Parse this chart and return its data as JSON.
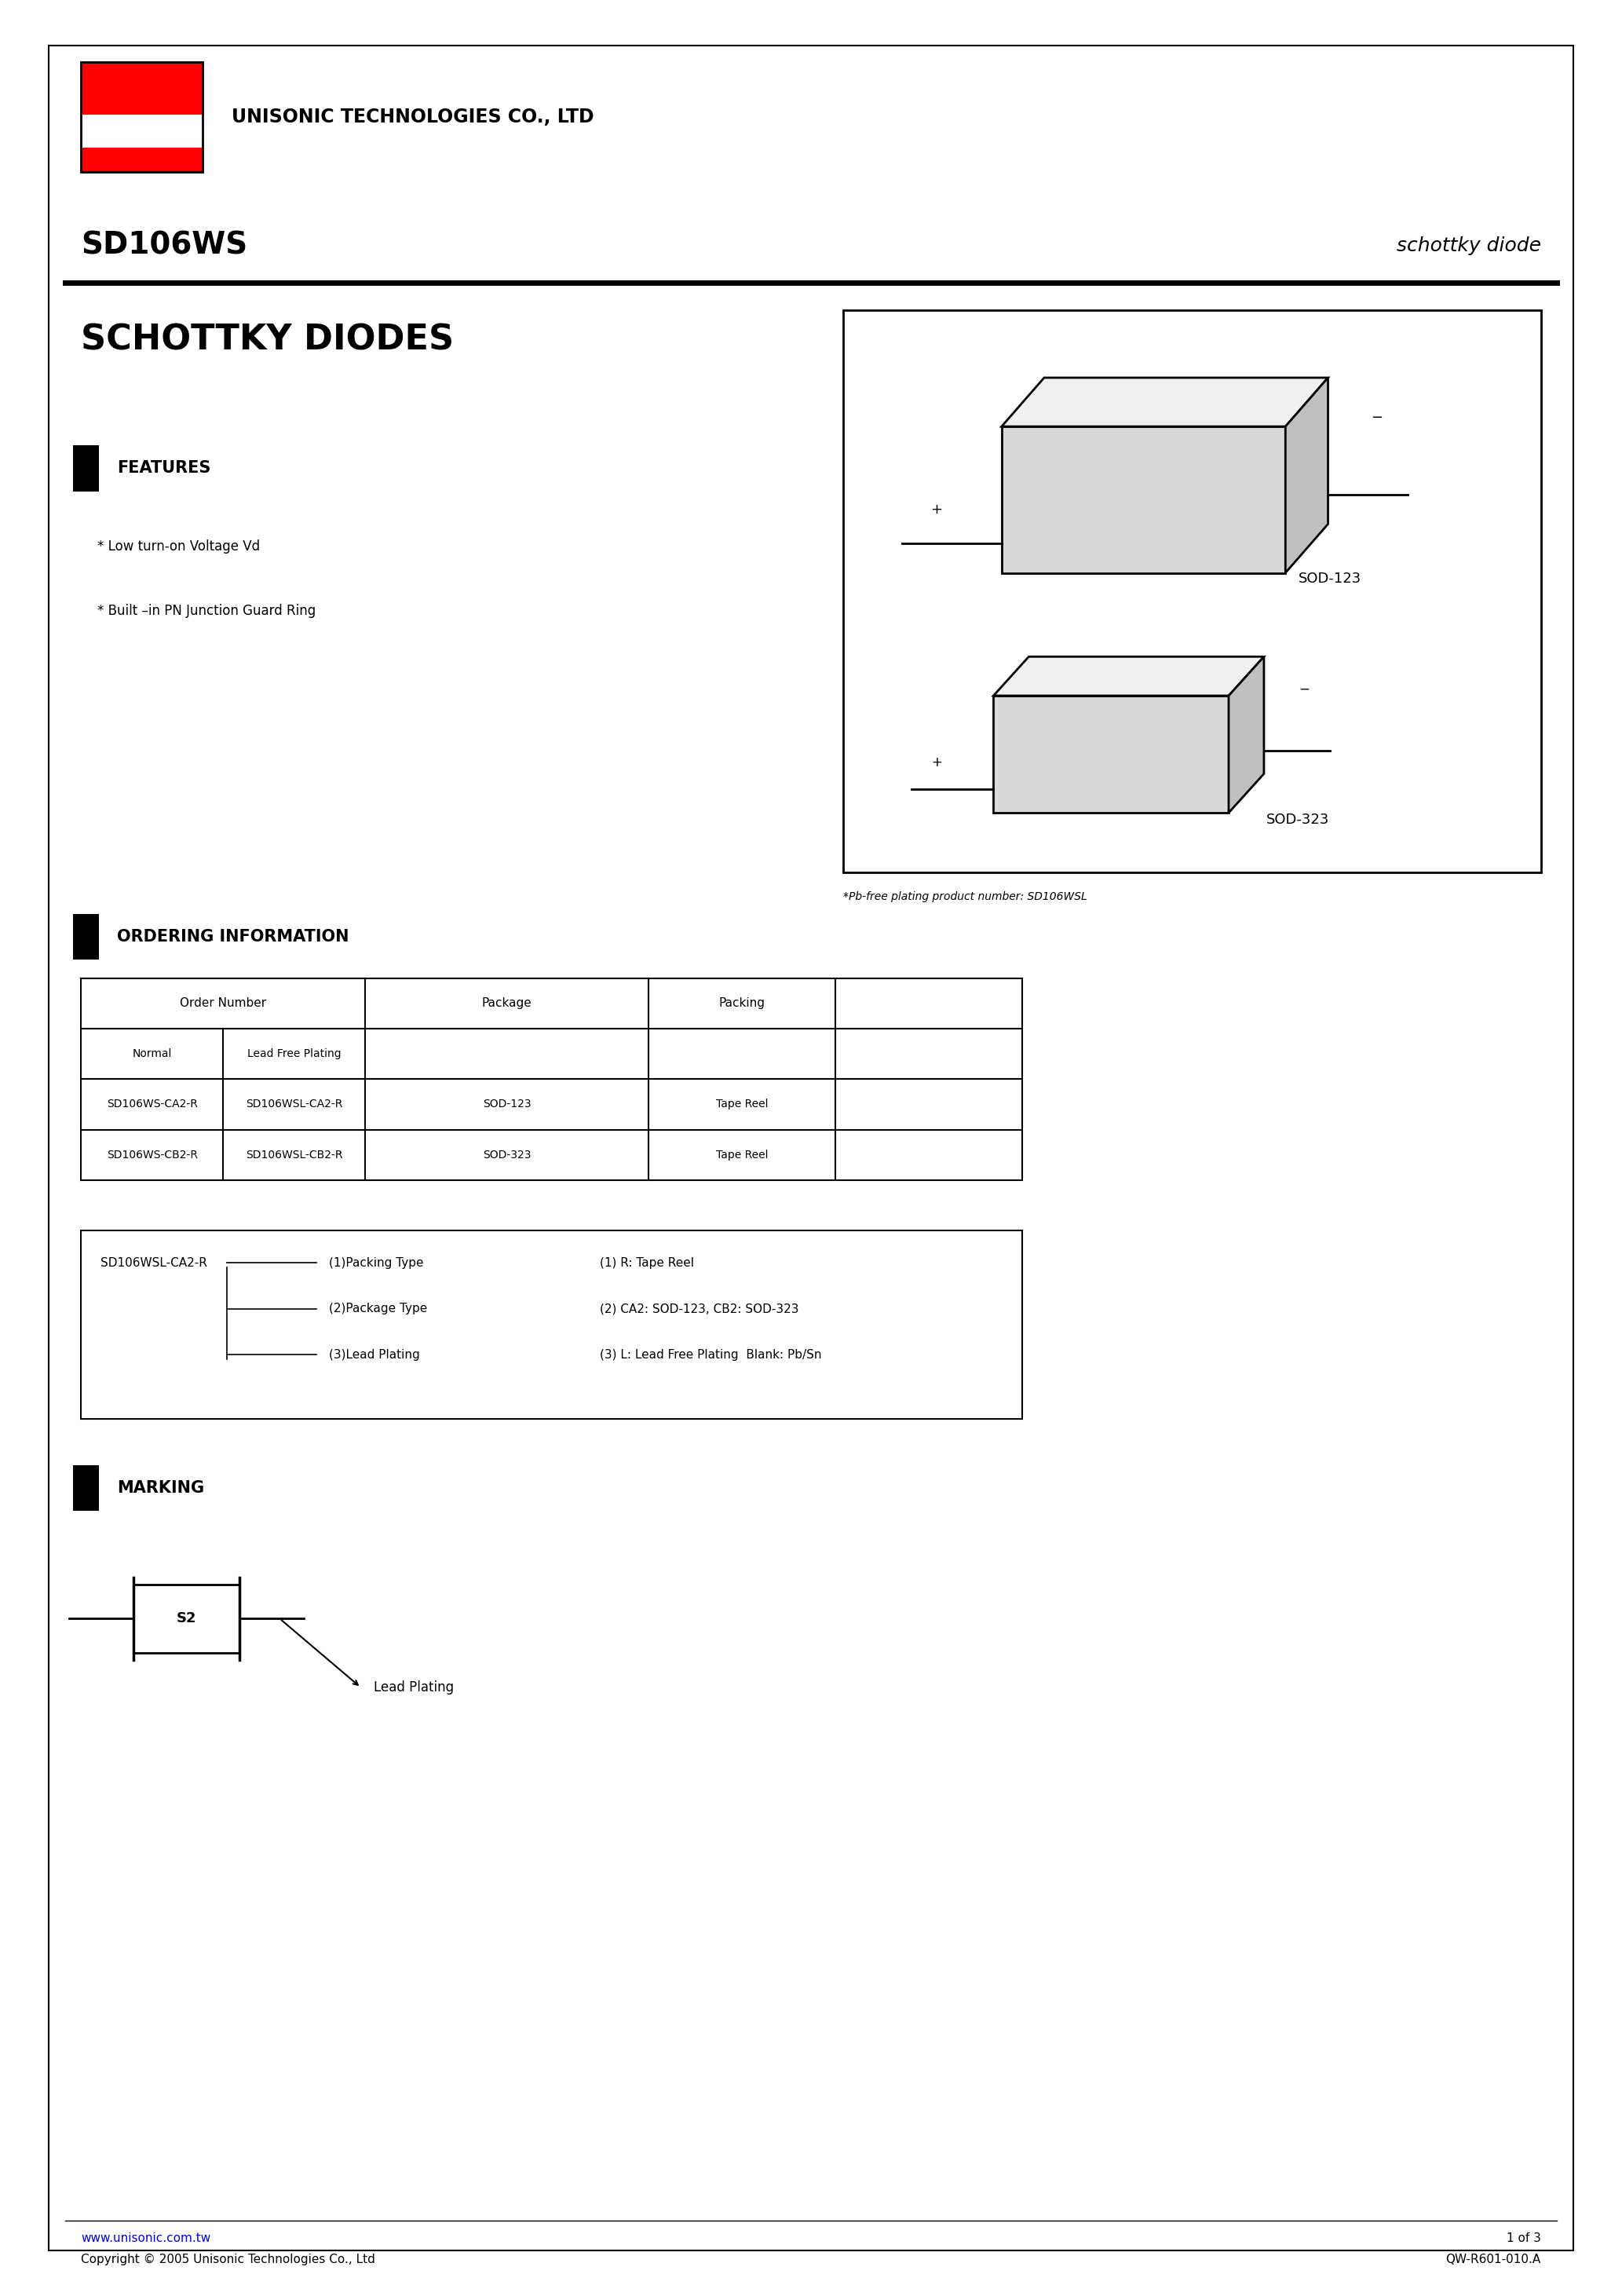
{
  "page_width": 20.66,
  "page_height": 29.24,
  "bg_color": "#ffffff",
  "border_color": "#000000",
  "utc_logo_red": "#ff0000",
  "company_name": "UNISONIC TECHNOLOGIES CO., LTD",
  "part_number": "SD106WS",
  "part_type": "schottky diode",
  "product_title": "SCHOTTKY DIODES",
  "features_title": "FEATURES",
  "features": [
    "* Low turn-on Voltage Vd",
    "* Built –in PN Junction Guard Ring"
  ],
  "pb_free_note": "*Pb-free plating product number: SD106WSL",
  "ordering_title": "ORDERING INFORMATION",
  "order_sub_headers": [
    "Normal",
    "Lead Free Plating"
  ],
  "order_rows": [
    [
      "SD106WS-CA2-R",
      "SD106WSL-CA2-R",
      "SOD-123",
      "Tape Reel"
    ],
    [
      "SD106WS-CB2-R",
      "SD106WSL-CB2-R",
      "SOD-323",
      "Tape Reel"
    ]
  ],
  "decode_box_label": "SD106WSL-CA2-R",
  "decode_items": [
    "(1)Packing Type",
    "(2)Package Type",
    "(3)Lead Plating"
  ],
  "decode_values": [
    "(1) R: Tape Reel",
    "(2) CA2: SOD-123, CB2: SOD-323",
    "(3) L: Lead Free Plating  Blank: Pb/Sn"
  ],
  "marking_title": "MARKING",
  "marking_code": "S2",
  "marking_note": "Lead Plating",
  "footer_url": "www.unisonic.com.tw",
  "footer_copyright": "Copyright © 2005 Unisonic Technologies Co., Ltd",
  "footer_page": "1 of 3",
  "footer_doc": "QW-R601-010.A",
  "sod123_label": "SOD-123",
  "sod323_label": "SOD-323"
}
